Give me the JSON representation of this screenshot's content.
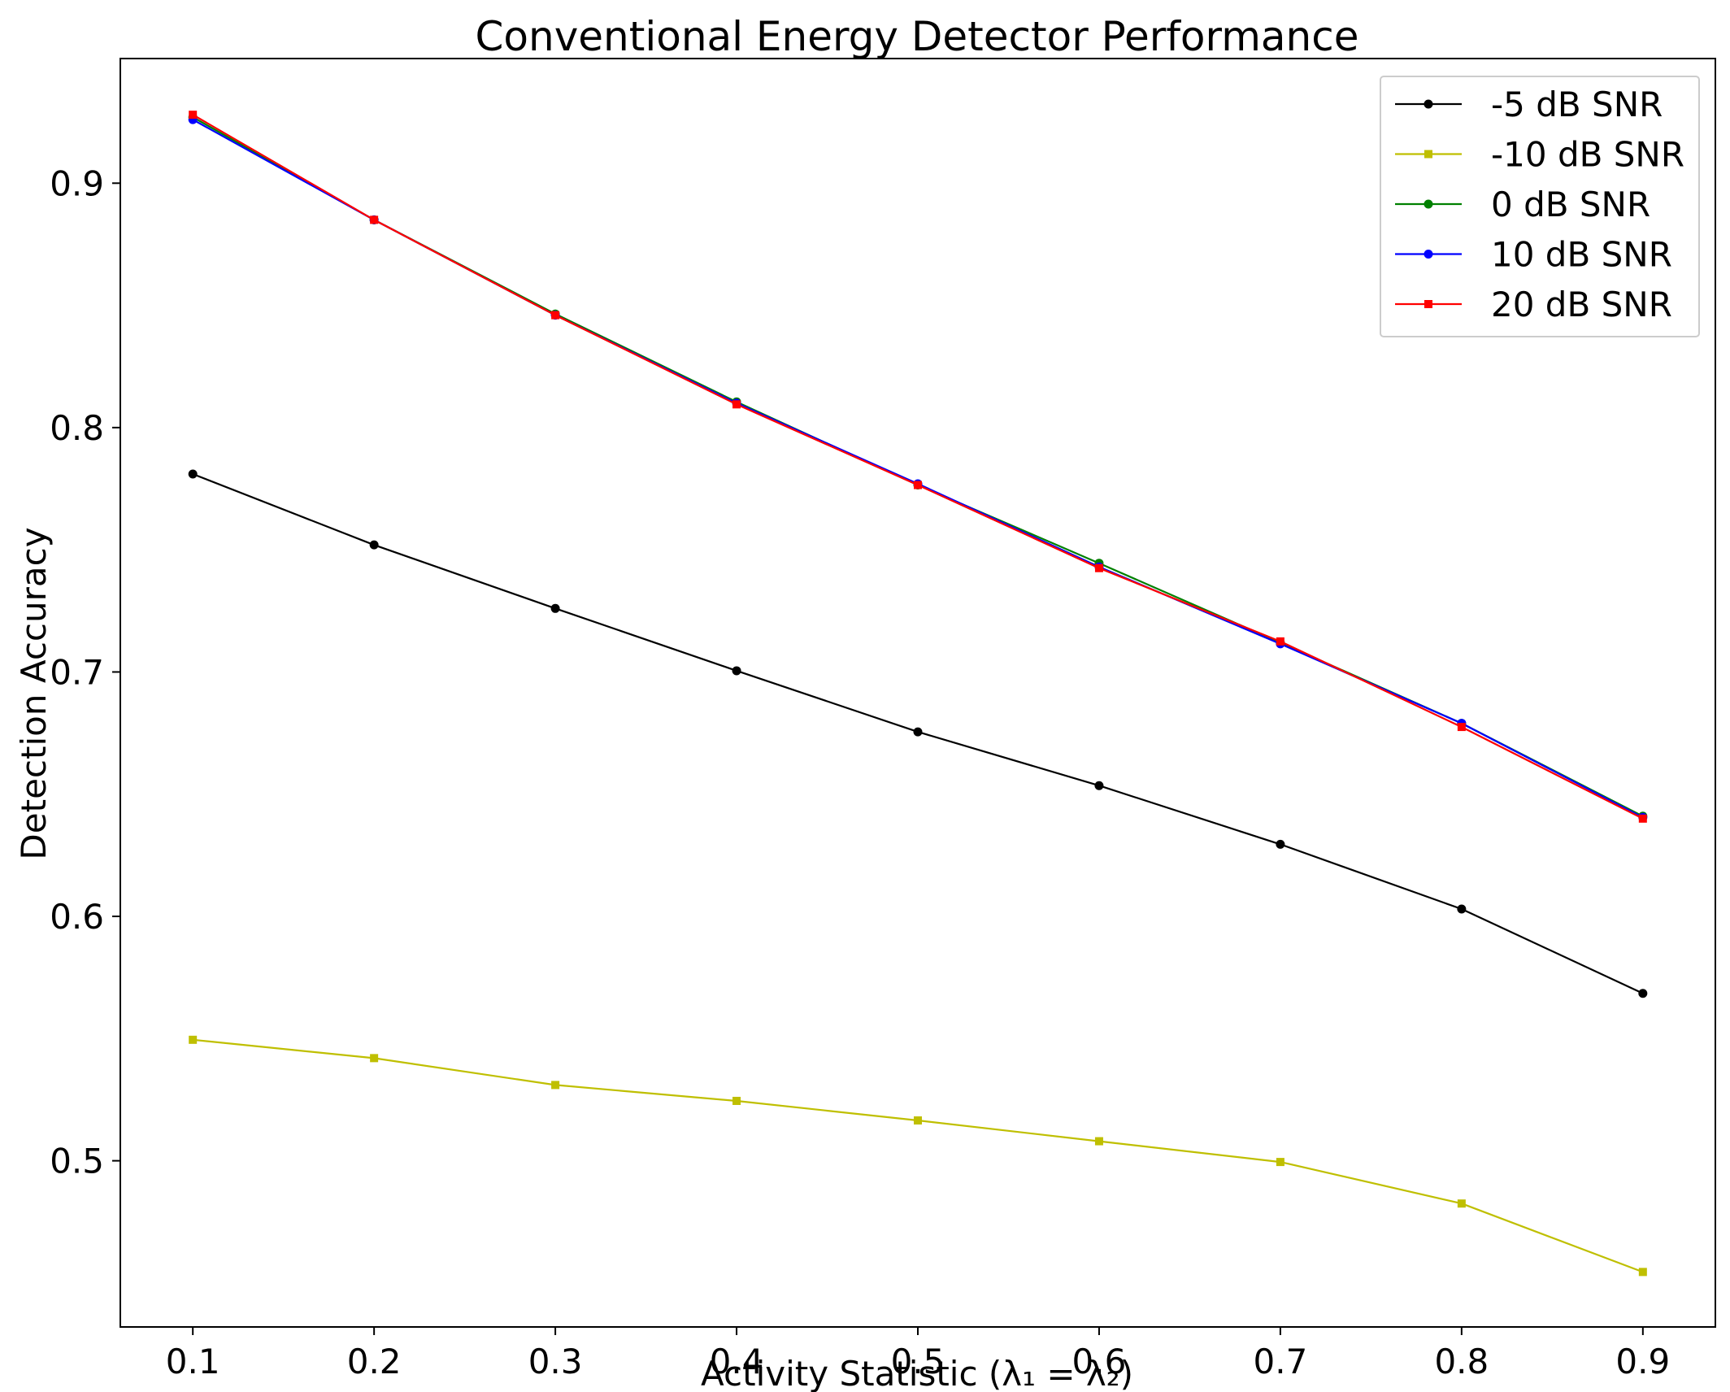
{
  "chart_data": {
    "type": "line",
    "title": "Conventional Energy Detector Performance",
    "xlabel": "Activity Statistic (λ₁ = λ₂)",
    "ylabel": "Detection Accuracy",
    "xlim": [
      0.06,
      0.94
    ],
    "ylim": [
      0.432,
      0.951
    ],
    "xticks": [
      0.1,
      0.2,
      0.3,
      0.4,
      0.5,
      0.6,
      0.7,
      0.8,
      0.9
    ],
    "xtick_labels": [
      "0.1",
      "0.2",
      "0.3",
      "0.4",
      "0.5",
      "0.6",
      "0.7",
      "0.8",
      "0.9"
    ],
    "yticks": [
      0.5,
      0.6,
      0.7,
      0.8,
      0.9
    ],
    "ytick_labels": [
      "0.5",
      "0.6",
      "0.7",
      "0.8",
      "0.9"
    ],
    "grid": false,
    "legend_position": "top-right",
    "x": [
      0.1,
      0.2,
      0.3,
      0.4,
      0.5,
      0.6,
      0.7,
      0.8,
      0.9
    ],
    "series": [
      {
        "name": "-5 dB SNR",
        "color": "#000000",
        "marker": "circle",
        "values": [
          0.781,
          0.752,
          0.726,
          0.7005,
          0.6755,
          0.6535,
          0.6295,
          0.603,
          0.5685
        ]
      },
      {
        "name": "-10 dB SNR",
        "color": "#bfbf00",
        "marker": "square",
        "values": [
          0.5495,
          0.542,
          0.531,
          0.5245,
          0.5165,
          0.508,
          0.4995,
          0.4825,
          0.4545
        ]
      },
      {
        "name": "0 dB SNR",
        "color": "#008000",
        "marker": "circle",
        "values": [
          0.927,
          0.885,
          0.8465,
          0.8105,
          0.7765,
          0.7445,
          0.712,
          0.679,
          0.641
        ]
      },
      {
        "name": "10 dB SNR",
        "color": "#0000ff",
        "marker": "circle",
        "values": [
          0.926,
          0.885,
          0.846,
          0.81,
          0.777,
          0.743,
          0.7115,
          0.679,
          0.6405
        ]
      },
      {
        "name": "20 dB SNR",
        "color": "#ff0000",
        "marker": "square",
        "values": [
          0.928,
          0.885,
          0.846,
          0.8095,
          0.7765,
          0.7425,
          0.7125,
          0.6775,
          0.64
        ]
      }
    ]
  }
}
